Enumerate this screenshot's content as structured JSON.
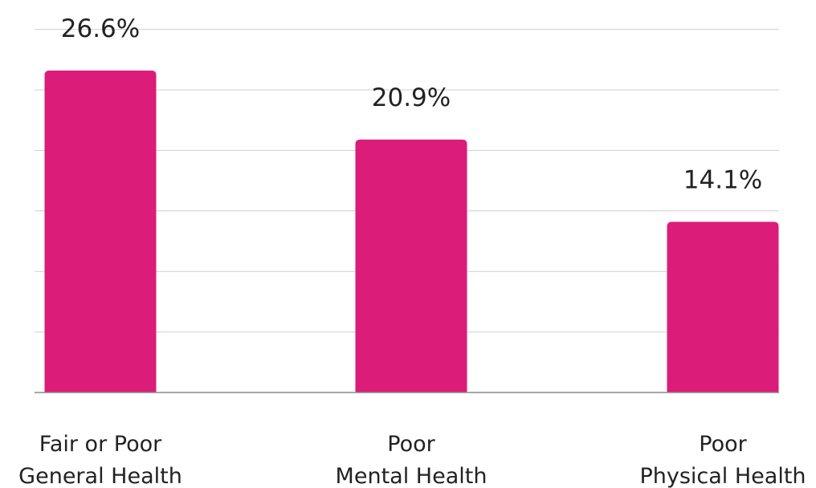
{
  "chart_data": {
    "type": "bar",
    "categories": [
      [
        "Fair or Poor",
        "General Health"
      ],
      [
        "Poor",
        "Mental Health"
      ],
      [
        "Poor",
        "Physical Health"
      ]
    ],
    "values": [
      26.6,
      20.9,
      14.1
    ],
    "value_labels": [
      "26.6%",
      "20.9%",
      "14.1%"
    ],
    "ylim": [
      0,
      30
    ],
    "grid": true,
    "bar_color": "#dc1c79",
    "title": "",
    "xlabel": "",
    "ylabel": ""
  }
}
